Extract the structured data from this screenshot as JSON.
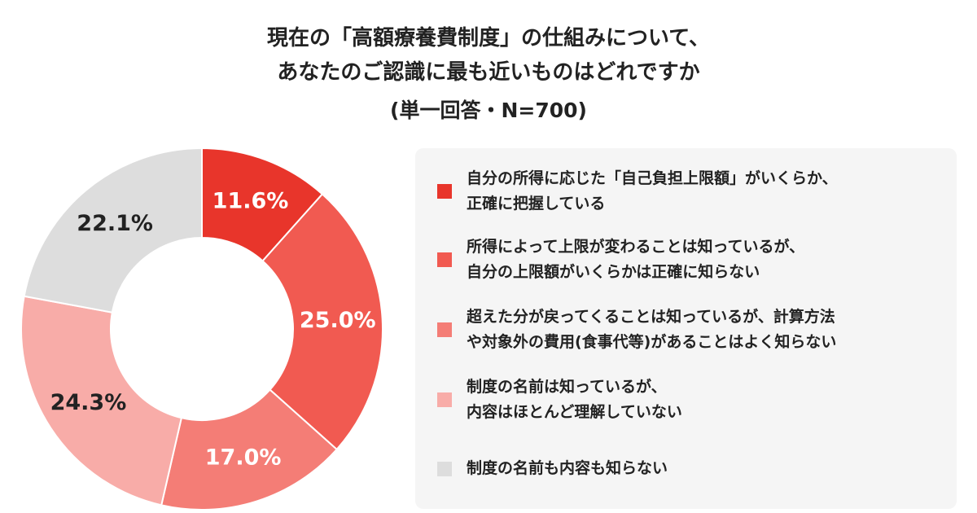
{
  "chart_data": {
    "type": "pie",
    "donut": true,
    "title": "現在の「高額療養費制度」の仕組みについて、\nあなたのご認識に最も近いものはどれですか",
    "subtitle": "(単一回答・N=700)",
    "series": [
      {
        "name": "自分の所得に応じた「自己負担上限額」がいくらか、\n正確に把握している",
        "color": "#e8352b"
      },
      {
        "name": "所得によって上限が変わることは知っているが、\n自分の上限額がいくらかは正確に知らない",
        "color": "#f15a51"
      },
      {
        "name": "超えた分が戻ってくることは知っているが、計算方法\nや対象外の費用(食事代等)があることはよく知らない",
        "color": "#f47d76"
      },
      {
        "name": "制度の名前は知っているが、\n内容はほとんど理解していない",
        "color": "#f8aca8"
      },
      {
        "name": "制度の名前も内容も知らない",
        "color": "#dddddd"
      }
    ],
    "values": [
      11.6,
      25.0,
      17.0,
      24.3,
      22.1
    ],
    "value_labels": [
      "11.6%",
      "25.0%",
      "17.0%",
      "24.3%",
      "22.1%"
    ],
    "label_colors": [
      "#ffffff",
      "#ffffff",
      "#ffffff",
      "#222222",
      "#222222"
    ]
  }
}
